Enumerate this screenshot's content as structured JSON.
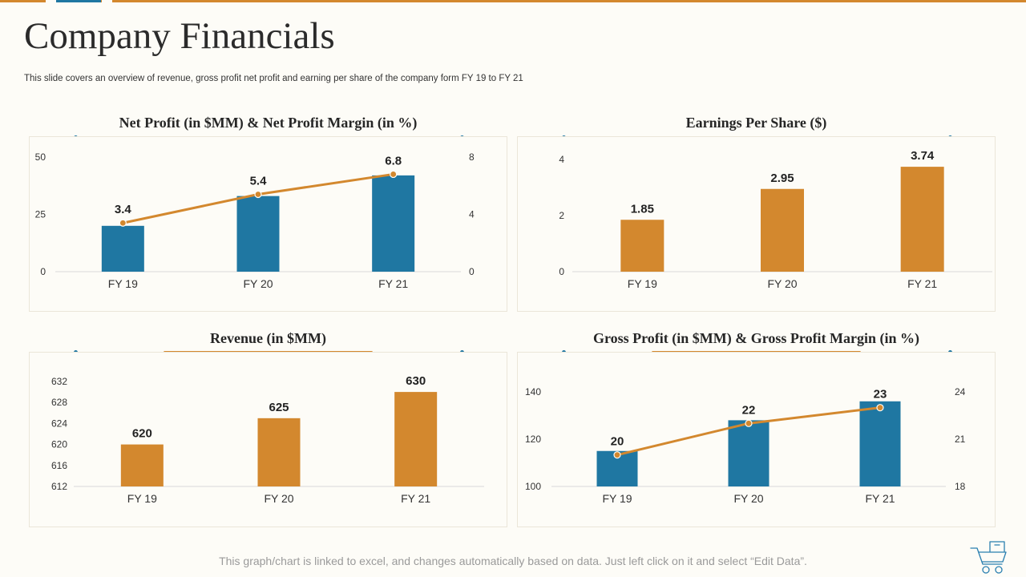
{
  "slide": {
    "title": "Company Financials",
    "subtitle": "This slide covers an overview of revenue, gross profit net profit and earning per share of  the company form FY 19 to FY 21",
    "footnote": "This graph/chart is linked to excel,  and changes automatically based on data. Just left click on it and select “Edit Data”.",
    "colors": {
      "accent_orange": "#d3882e",
      "accent_blue": "#1f77a2",
      "background": "#fdfcf7"
    },
    "icons": {
      "corner": "shopping-cart-icon"
    }
  },
  "chart_data": [
    {
      "title": "Net Profit (in $MM) & Net Profit Margin (in %)",
      "type": "bar",
      "categories": [
        "FY 19",
        "FY 20",
        "FY 21"
      ],
      "series": [
        {
          "name": "Net Profit (in $MM)",
          "type": "bar",
          "axis": "left",
          "values": [
            20,
            33,
            42
          ],
          "color": "#1f77a2"
        },
        {
          "name": "Net Profit Margin (in %)",
          "type": "line",
          "axis": "right",
          "values": [
            3.4,
            5.4,
            6.8
          ],
          "labels": [
            "3.4",
            "5.4",
            "6.8"
          ],
          "color": "#d3882e"
        }
      ],
      "y_left": {
        "min": 0,
        "max": 50,
        "ticks": [
          0,
          25,
          50
        ]
      },
      "y_right": {
        "min": 0,
        "max": 8,
        "ticks": [
          0,
          4,
          8
        ]
      }
    },
    {
      "title": "Earnings Per Share ($)",
      "type": "bar",
      "categories": [
        "FY 19",
        "FY 20",
        "FY 21"
      ],
      "series": [
        {
          "name": "Earnings Per Share ($)",
          "type": "bar",
          "axis": "left",
          "values": [
            1.85,
            2.95,
            3.74
          ],
          "labels": [
            "1.85",
            "2.95",
            "3.74"
          ],
          "color": "#d3882e"
        }
      ],
      "y_left": {
        "min": 0,
        "max": 4,
        "ticks": [
          0,
          2,
          4
        ]
      }
    },
    {
      "title": "Revenue (in $MM)",
      "type": "bar",
      "categories": [
        "FY 19",
        "FY 20",
        "FY 21"
      ],
      "series": [
        {
          "name": "Revenue (in $MM)",
          "type": "bar",
          "axis": "left",
          "values": [
            620,
            625,
            630
          ],
          "labels": [
            "620",
            "625",
            "630"
          ],
          "color": "#d3882e"
        }
      ],
      "y_left": {
        "min": 612,
        "max": 632,
        "ticks": [
          612,
          616,
          620,
          624,
          628,
          632
        ]
      }
    },
    {
      "title": "Gross Profit (in $MM) & Gross Profit Margin (in %)",
      "type": "bar",
      "categories": [
        "FY 19",
        "FY 20",
        "FY 21"
      ],
      "series": [
        {
          "name": "Gross Profit (in $MM)",
          "type": "bar",
          "axis": "left",
          "values": [
            115,
            128,
            136
          ],
          "color": "#1f77a2"
        },
        {
          "name": "Gross Profit Margin (in %)",
          "type": "line",
          "axis": "right",
          "values": [
            20,
            22,
            23
          ],
          "labels": [
            "20",
            "22",
            "23"
          ],
          "color": "#d3882e"
        }
      ],
      "y_left": {
        "min": 100,
        "max": 140,
        "ticks": [
          100,
          120,
          140
        ]
      },
      "y_right": {
        "min": 18,
        "max": 24,
        "ticks": [
          18,
          21,
          24
        ]
      }
    }
  ]
}
